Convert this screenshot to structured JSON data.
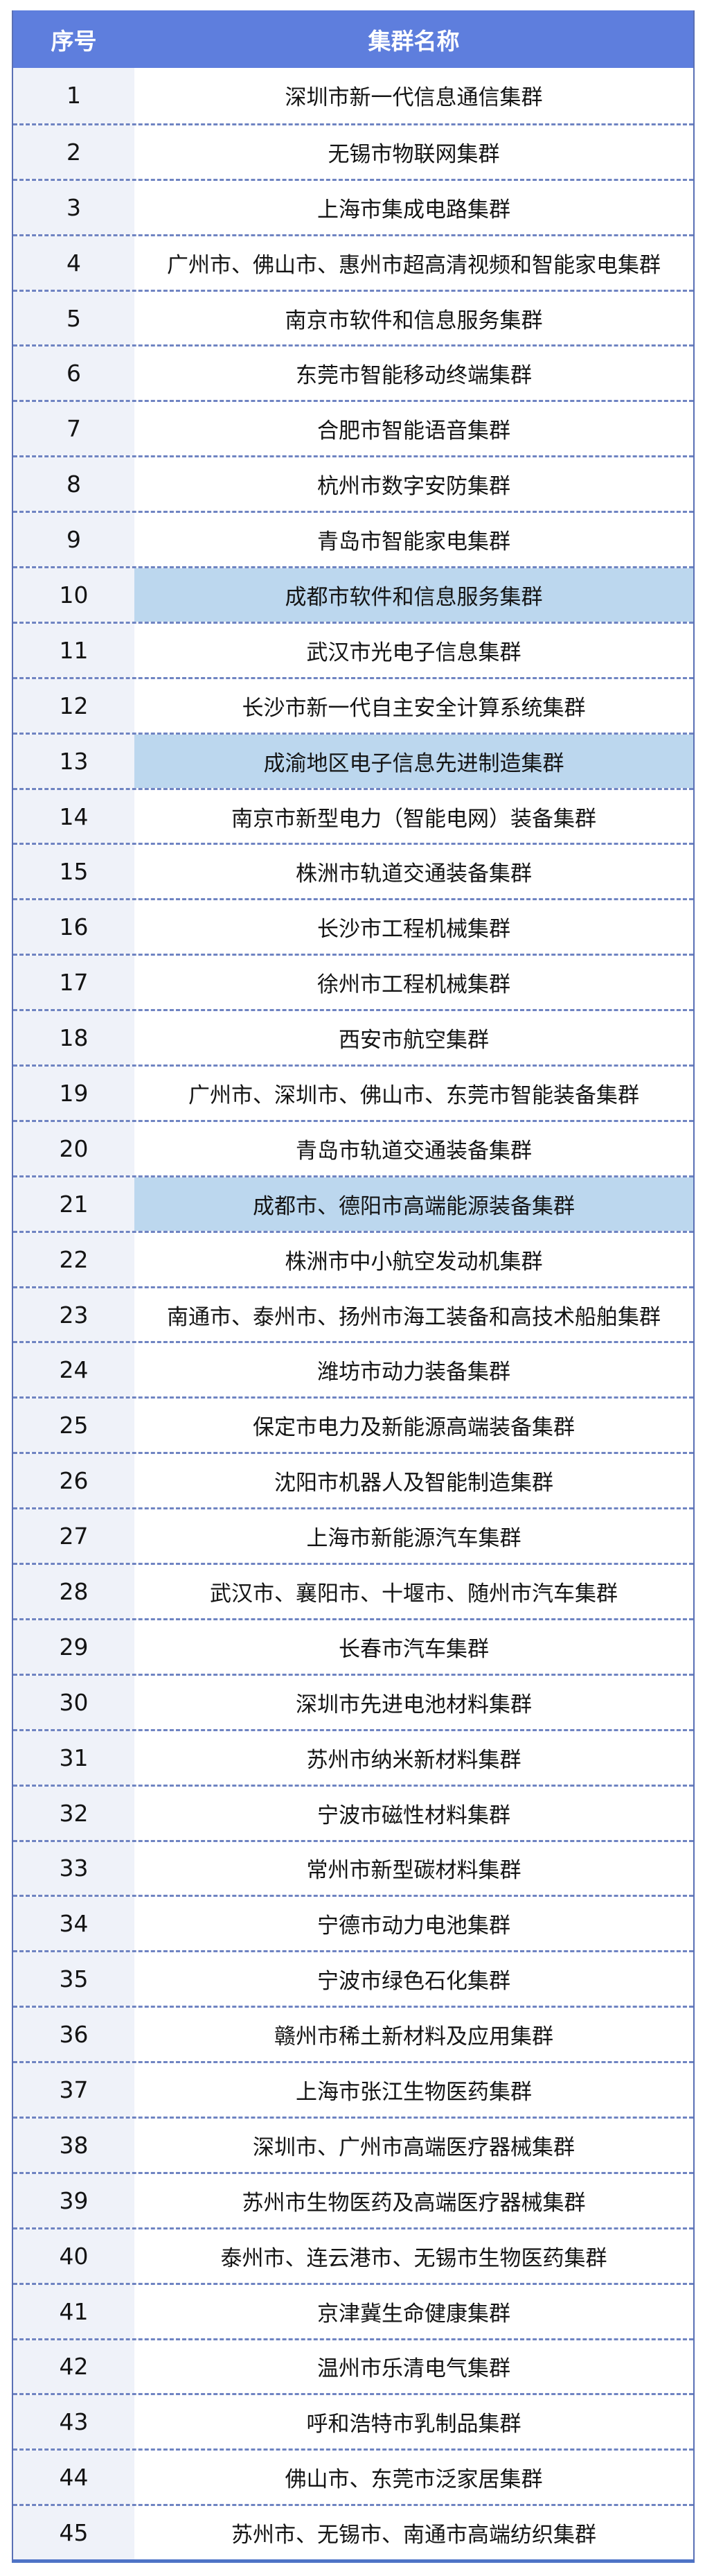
{
  "table": {
    "columns": [
      "序号",
      "集群名称"
    ],
    "rows": [
      {
        "num": "1",
        "name": "深圳市新一代信息通信集群",
        "highlight": false
      },
      {
        "num": "2",
        "name": "无锡市物联网集群",
        "highlight": false
      },
      {
        "num": "3",
        "name": "上海市集成电路集群",
        "highlight": false
      },
      {
        "num": "4",
        "name": "广州市、佛山市、惠州市超高清视频和智能家电集群",
        "highlight": false
      },
      {
        "num": "5",
        "name": "南京市软件和信息服务集群",
        "highlight": false
      },
      {
        "num": "6",
        "name": "东莞市智能移动终端集群",
        "highlight": false
      },
      {
        "num": "7",
        "name": "合肥市智能语音集群",
        "highlight": false
      },
      {
        "num": "8",
        "name": "杭州市数字安防集群",
        "highlight": false
      },
      {
        "num": "9",
        "name": "青岛市智能家电集群",
        "highlight": false
      },
      {
        "num": "10",
        "name": "成都市软件和信息服务集群",
        "highlight": true
      },
      {
        "num": "11",
        "name": "武汉市光电子信息集群",
        "highlight": false
      },
      {
        "num": "12",
        "name": "长沙市新一代自主安全计算系统集群",
        "highlight": false
      },
      {
        "num": "13",
        "name": "成渝地区电子信息先进制造集群",
        "highlight": true
      },
      {
        "num": "14",
        "name": "南京市新型电力（智能电网）装备集群",
        "highlight": false
      },
      {
        "num": "15",
        "name": "株洲市轨道交通装备集群",
        "highlight": false
      },
      {
        "num": "16",
        "name": "长沙市工程机械集群",
        "highlight": false
      },
      {
        "num": "17",
        "name": "徐州市工程机械集群",
        "highlight": false
      },
      {
        "num": "18",
        "name": "西安市航空集群",
        "highlight": false
      },
      {
        "num": "19",
        "name": "广州市、深圳市、佛山市、东莞市智能装备集群",
        "highlight": false
      },
      {
        "num": "20",
        "name": "青岛市轨道交通装备集群",
        "highlight": false
      },
      {
        "num": "21",
        "name": "成都市、德阳市高端能源装备集群",
        "highlight": true
      },
      {
        "num": "22",
        "name": "株洲市中小航空发动机集群",
        "highlight": false
      },
      {
        "num": "23",
        "name": "南通市、泰州市、扬州市海工装备和高技术船舶集群",
        "highlight": false
      },
      {
        "num": "24",
        "name": "潍坊市动力装备集群",
        "highlight": false
      },
      {
        "num": "25",
        "name": "保定市电力及新能源高端装备集群",
        "highlight": false
      },
      {
        "num": "26",
        "name": "沈阳市机器人及智能制造集群",
        "highlight": false
      },
      {
        "num": "27",
        "name": "上海市新能源汽车集群",
        "highlight": false
      },
      {
        "num": "28",
        "name": "武汉市、襄阳市、十堰市、随州市汽车集群",
        "highlight": false
      },
      {
        "num": "29",
        "name": "长春市汽车集群",
        "highlight": false
      },
      {
        "num": "30",
        "name": "深圳市先进电池材料集群",
        "highlight": false
      },
      {
        "num": "31",
        "name": "苏州市纳米新材料集群",
        "highlight": false
      },
      {
        "num": "32",
        "name": "宁波市磁性材料集群",
        "highlight": false
      },
      {
        "num": "33",
        "name": "常州市新型碳材料集群",
        "highlight": false
      },
      {
        "num": "34",
        "name": "宁德市动力电池集群",
        "highlight": false
      },
      {
        "num": "35",
        "name": "宁波市绿色石化集群",
        "highlight": false
      },
      {
        "num": "36",
        "name": "赣州市稀土新材料及应用集群",
        "highlight": false
      },
      {
        "num": "37",
        "name": "上海市张江生物医药集群",
        "highlight": false
      },
      {
        "num": "38",
        "name": "深圳市、广州市高端医疗器械集群",
        "highlight": false
      },
      {
        "num": "39",
        "name": "苏州市生物医药及高端医疗器械集群",
        "highlight": false
      },
      {
        "num": "40",
        "name": "泰州市、连云港市、无锡市生物医药集群",
        "highlight": false
      },
      {
        "num": "41",
        "name": "京津冀生命健康集群",
        "highlight": false
      },
      {
        "num": "42",
        "name": "温州市乐清电气集群",
        "highlight": false
      },
      {
        "num": "43",
        "name": "呼和浩特市乳制品集群",
        "highlight": false
      },
      {
        "num": "44",
        "name": "佛山市、东莞市泛家居集群",
        "highlight": false
      },
      {
        "num": "45",
        "name": "苏州市、无锡市、南通市高端纺织集群",
        "highlight": false
      }
    ],
    "colors": {
      "header_bg": "#5e7edd",
      "header_text": "#ffffff",
      "index_col_bg": "#eff2f9",
      "highlight_bg": "#bcd7ee",
      "row_divider": "#6f84c2",
      "outer_border": "#5a70b5",
      "bottom_border": "#4e73c6",
      "body_text": "#141414",
      "page_bg": "#ffffff"
    }
  }
}
